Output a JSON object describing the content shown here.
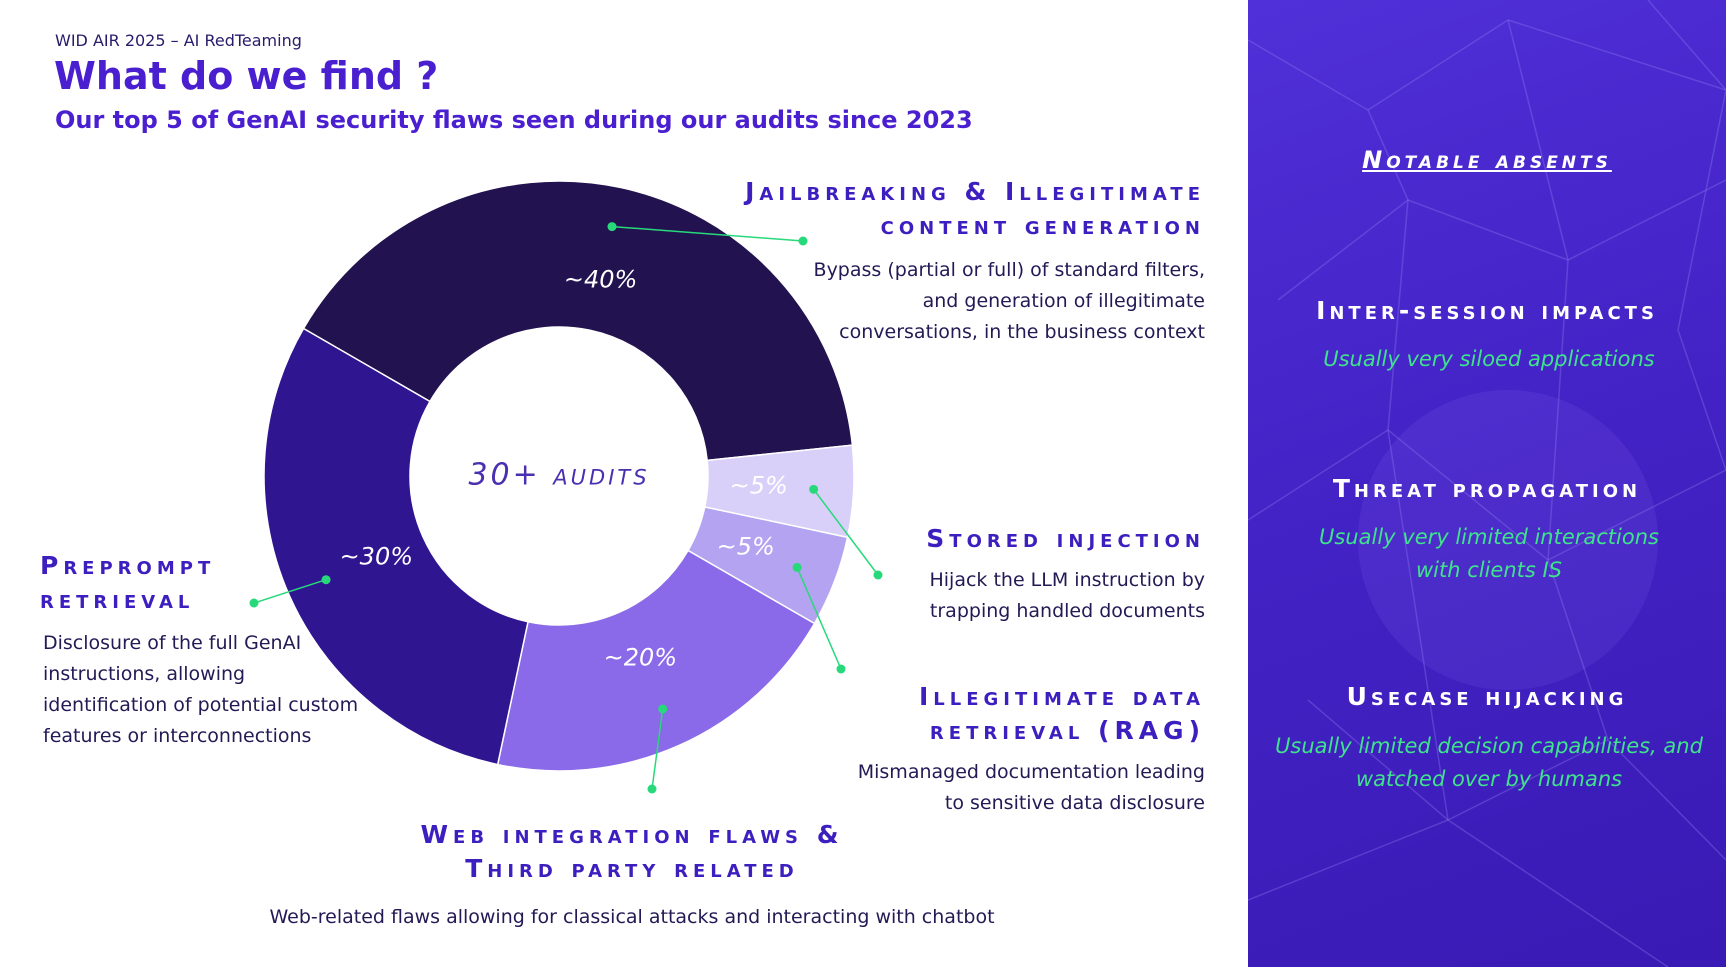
{
  "header": {
    "kicker": "WID AIR 2025 – AI RedTeaming",
    "title": "What do we find ?",
    "subtitle": "Our top 5 of GenAI security flaws seen during our audits since 2023"
  },
  "chart_data": {
    "type": "pie",
    "center_label": "30+ audits",
    "categories": [
      "Jailbreaking & Illegitimate content generation",
      "Stored injection",
      "Illegitimate data retrieval (RAG)",
      "Web integration flaws & Third party related",
      "Preprompt retrieval"
    ],
    "descriptions": [
      "Bypass (partial or full) of standard filters, and generation of illegitimate conversations, in the business context",
      "Hijack the LLM instruction by trapping handled documents",
      "Mismanaged documentation leading to sensitive data disclosure",
      "Web-related flaws allowing for classical attacks and interacting with chatbot",
      "Disclosure of the full GenAI instructions, allowing identification of potential custom features or interconnections"
    ],
    "values": [
      40,
      5,
      5,
      20,
      30
    ],
    "value_labels": [
      "~40%",
      "~5%",
      "~5%",
      "~20%",
      "~30%"
    ],
    "colors": [
      "#22124f",
      "#d9d0f9",
      "#b3a3f1",
      "#8a6ae8",
      "#301591"
    ]
  },
  "sidebar": {
    "title": "Notable absents",
    "items": [
      {
        "title": "Inter-session impacts",
        "description": "Usually very siloed applications"
      },
      {
        "title": "Threat propagation",
        "description": "Usually very limited interactions with clients IS"
      },
      {
        "title": "Usecase hijacking",
        "description": "Usually limited decision capabilities, and watched over by humans"
      }
    ]
  }
}
